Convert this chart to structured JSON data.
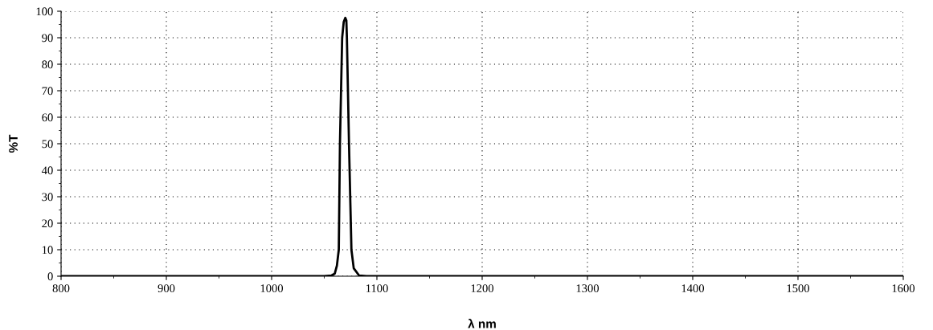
{
  "chart_data": {
    "type": "line",
    "xlabel": "λ nm",
    "ylabel": "%T",
    "x": [
      800,
      1050,
      1057,
      1060,
      1062,
      1063.8,
      1064.9,
      1067,
      1068.5,
      1070,
      1071,
      1071.5,
      1073.5,
      1075.8,
      1078,
      1083,
      1090,
      1600
    ],
    "series": [
      {
        "color": "#000000",
        "values": [
          0,
          0,
          0.3,
          1,
          4,
          10,
          50,
          90,
          96,
          97.5,
          96.5,
          90,
          50,
          10,
          3,
          0.3,
          0,
          0
        ]
      }
    ],
    "xlim": [
      800,
      1600
    ],
    "ylim": [
      0,
      100
    ],
    "xticks": [
      800,
      900,
      1000,
      1100,
      1200,
      1300,
      1400,
      1500,
      1600
    ],
    "yticks": [
      0,
      10,
      20,
      30,
      40,
      50,
      60,
      70,
      80,
      90,
      100
    ],
    "grid": true,
    "legend": false,
    "marker": "none",
    "line_style": "solid"
  }
}
